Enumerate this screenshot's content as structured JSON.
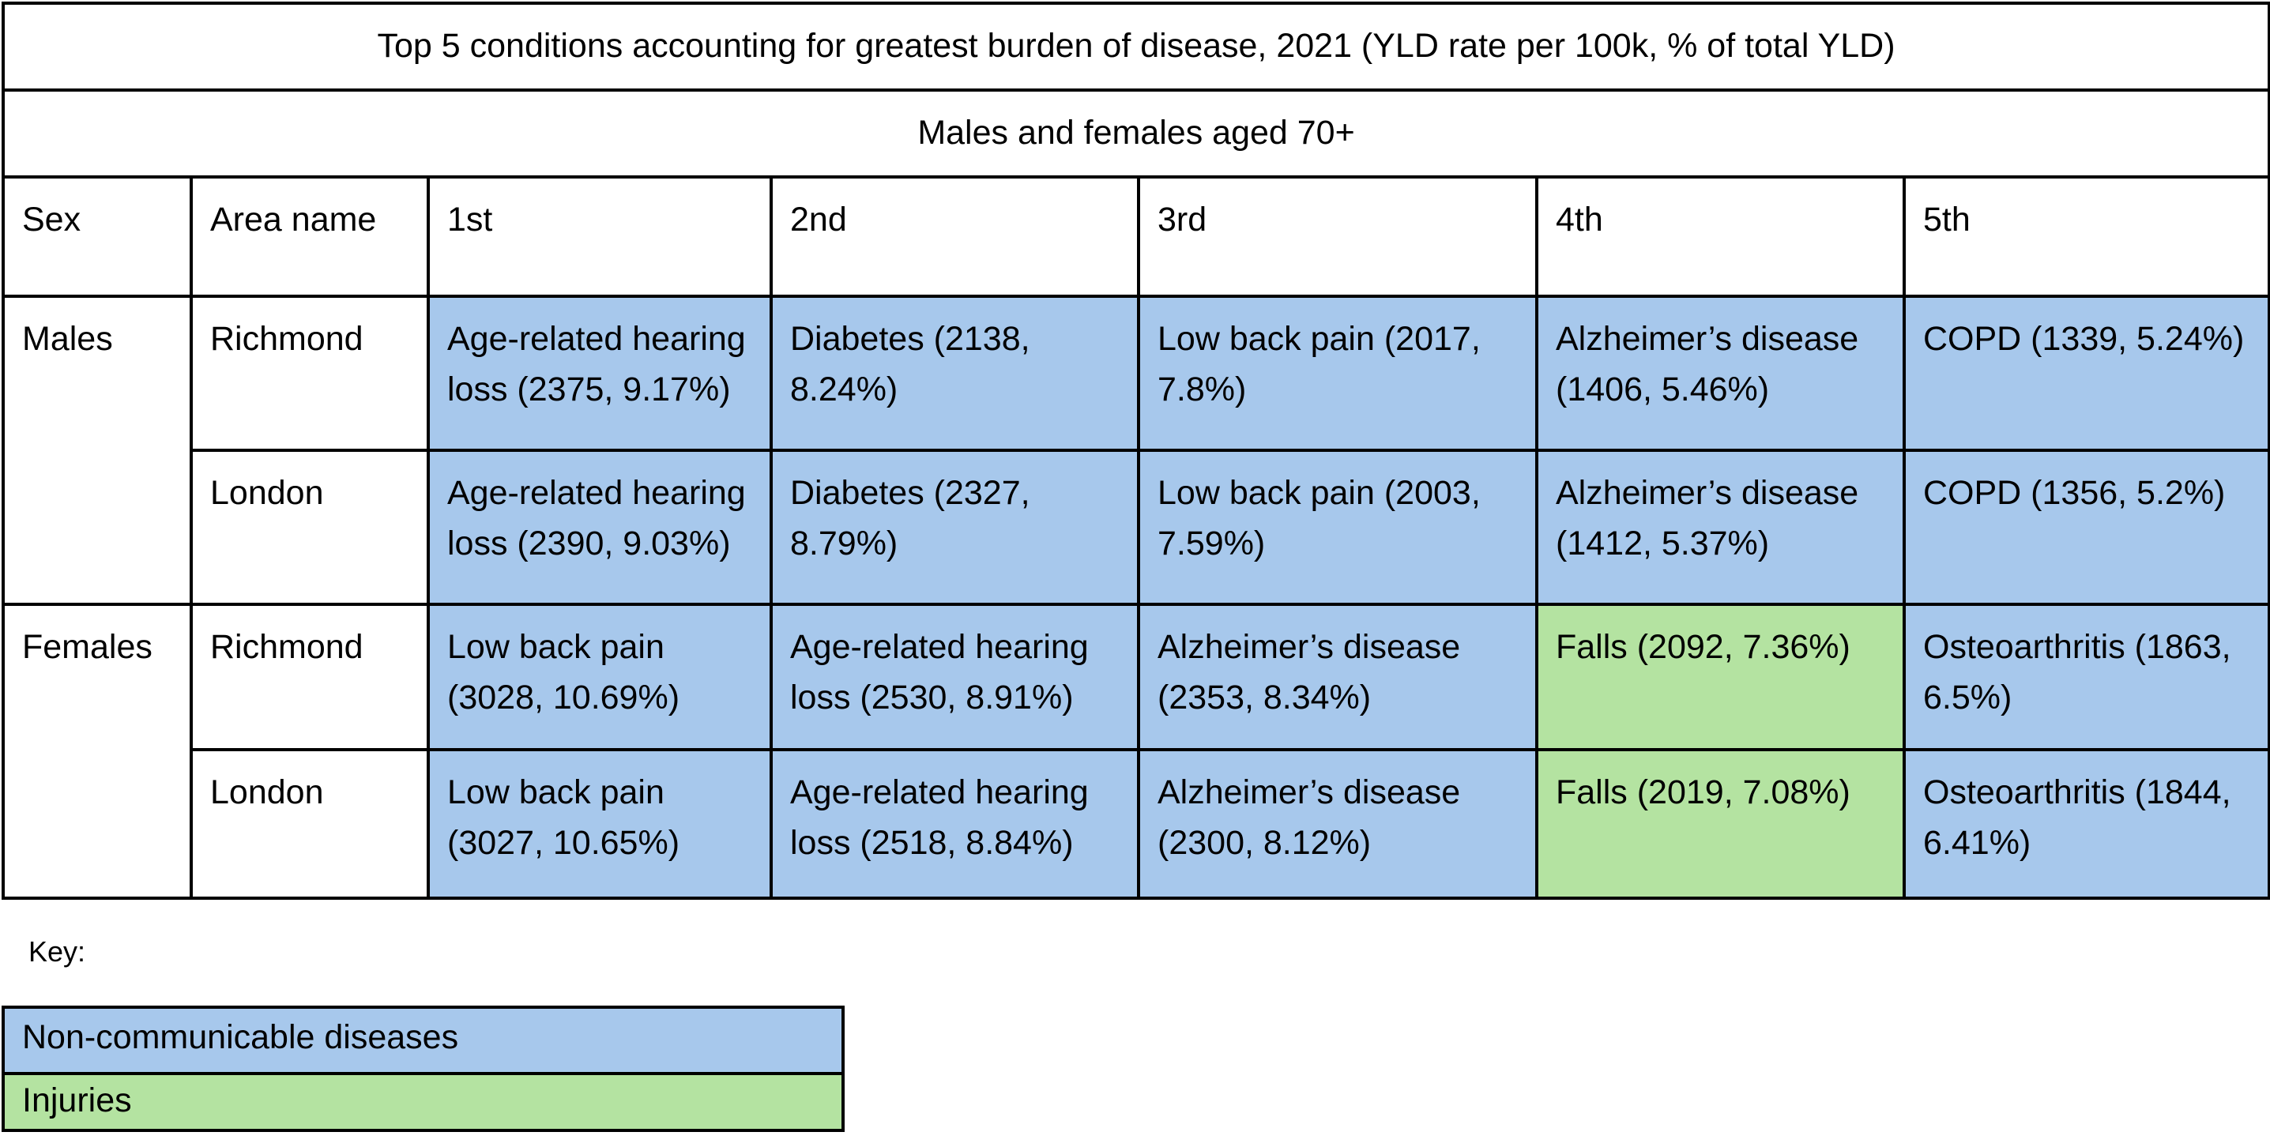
{
  "table": {
    "title": "Top 5 conditions accounting for greatest burden of disease, 2021 (YLD rate per 100k, % of total YLD)",
    "subtitle": "Males and females aged 70+",
    "headers": [
      "Sex",
      "Area name",
      "1st",
      "2nd",
      "3rd",
      "4th",
      "5th"
    ],
    "groups": [
      {
        "sex": "Males",
        "rows": [
          {
            "area": "Richmond",
            "cells": [
              {
                "text": "Age-related hearing loss (2375, 9.17%)",
                "category": "ncd"
              },
              {
                "text": "Diabetes (2138, 8.24%)",
                "category": "ncd"
              },
              {
                "text": "Low back pain (2017, 7.8%)",
                "category": "ncd"
              },
              {
                "text": "Alzheimer’s disease (1406, 5.46%)",
                "category": "ncd"
              },
              {
                "text": "COPD (1339, 5.24%)",
                "category": "ncd"
              }
            ]
          },
          {
            "area": "London",
            "cells": [
              {
                "text": "Age-related hearing loss (2390, 9.03%)",
                "category": "ncd"
              },
              {
                "text": "Diabetes (2327, 8.79%)",
                "category": "ncd"
              },
              {
                "text": "Low back pain (2003, 7.59%)",
                "category": "ncd"
              },
              {
                "text": "Alzheimer’s disease (1412, 5.37%)",
                "category": "ncd"
              },
              {
                "text": "COPD (1356, 5.2%)",
                "category": "ncd"
              }
            ]
          }
        ]
      },
      {
        "sex": "Females",
        "rows": [
          {
            "area": "Richmond",
            "cells": [
              {
                "text": "Low back pain (3028, 10.69%)",
                "category": "ncd"
              },
              {
                "text": "Age-related hearing loss (2530, 8.91%)",
                "category": "ncd"
              },
              {
                "text": "Alzheimer’s disease (2353, 8.34%)",
                "category": "ncd"
              },
              {
                "text": "Falls (2092, 7.36%)",
                "category": "injury"
              },
              {
                "text": "Osteoarthritis (1863, 6.5%)",
                "category": "ncd"
              }
            ]
          },
          {
            "area": "London",
            "cells": [
              {
                "text": "Low back pain (3027, 10.65%)",
                "category": "ncd"
              },
              {
                "text": "Age-related hearing loss (2518, 8.84%)",
                "category": "ncd"
              },
              {
                "text": "Alzheimer’s disease (2300, 8.12%)",
                "category": "ncd"
              },
              {
                "text": "Falls (2019, 7.08%)",
                "category": "injury"
              },
              {
                "text": "Osteoarthritis (1844, 6.41%)",
                "category": "ncd"
              }
            ]
          }
        ]
      }
    ]
  },
  "key": {
    "label": "Key:",
    "items": [
      {
        "label": "Non-communicable diseases",
        "color": "#a7c8ec"
      },
      {
        "label": "Injuries",
        "color": "#b4e3a1"
      }
    ]
  }
}
